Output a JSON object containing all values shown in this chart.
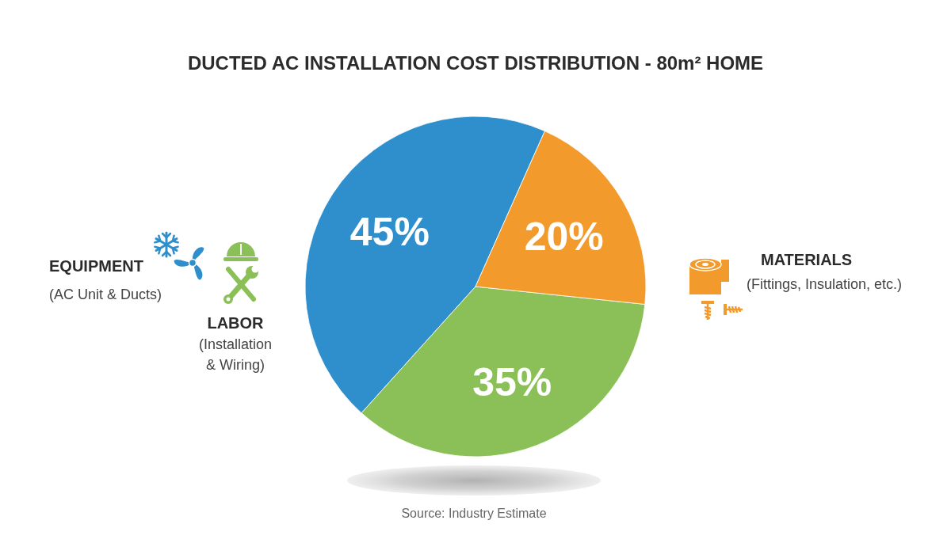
{
  "chart_data": {
    "type": "pie",
    "title": "DUCTED AC INSTALLATION COST DISTRIBUTION - 80m² HOME",
    "categories": [
      "EQUIPMENT\n(AC Unit & Ducts)",
      "LABOR\n(Installation\n& Wiring)",
      "MATERIALS\n(Fittings, Insulation, etc.)"
    ],
    "values": [
      45,
      35,
      20
    ],
    "colors": [
      "#2e8fcc",
      "#8bc058",
      "#f39a2c"
    ],
    "value_labels": [
      "45%",
      "35%",
      "20%"
    ],
    "legend": "left",
    "annotations": [
      "Source: Industry Estimate"
    ]
  }
}
